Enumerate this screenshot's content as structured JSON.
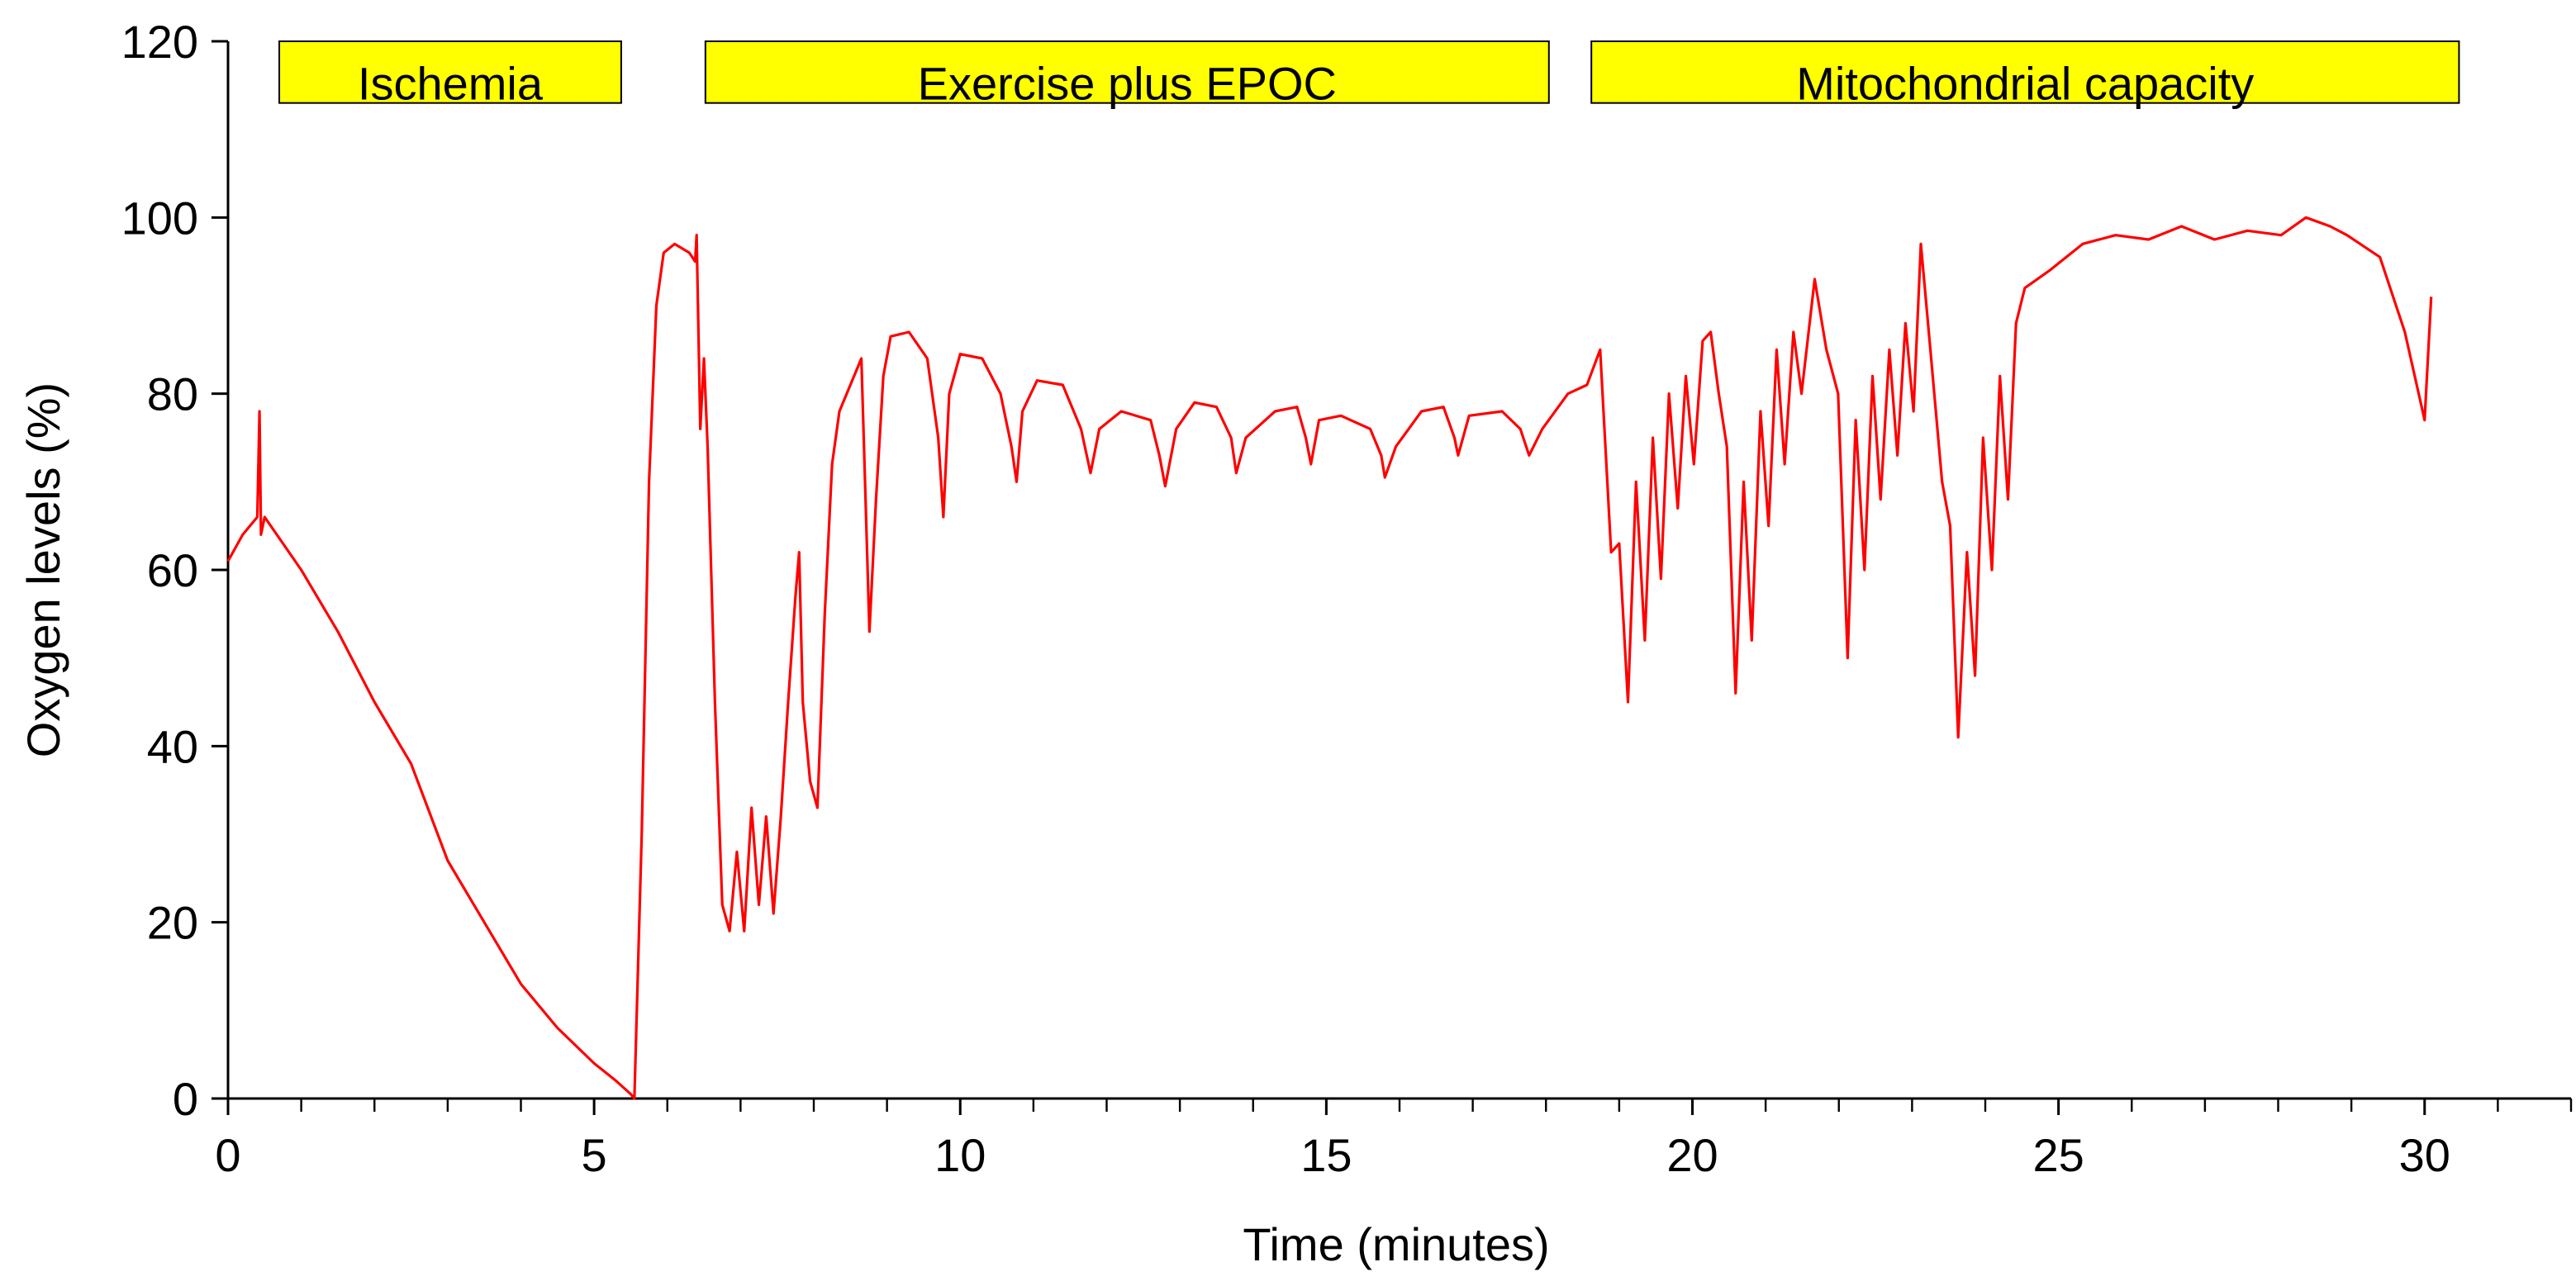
{
  "chart_data": {
    "type": "line",
    "xlabel": "Time (minutes)",
    "ylabel": "Oxygen levels (%)",
    "color": "#ff0000",
    "xlim": [
      0,
      32
    ],
    "ylim": [
      0,
      120
    ],
    "xticks": [
      0,
      5,
      10,
      15,
      20,
      25,
      30
    ],
    "yticks": [
      0,
      20,
      40,
      60,
      80,
      100,
      120
    ],
    "x_minor_ticks": [
      0,
      1,
      2,
      3,
      4,
      5,
      6,
      7,
      8,
      9,
      10,
      11,
      12,
      13,
      14,
      15,
      16,
      17,
      18,
      19,
      20,
      21,
      22,
      23,
      24,
      25,
      26,
      27,
      28,
      29,
      30,
      31,
      32
    ],
    "annotations": [
      {
        "text": "Ischemia",
        "x": [
          0.7,
          5.37
        ],
        "y": [
          113,
          120
        ],
        "color": "#ffff00"
      },
      {
        "text": "Exercise plus EPOC",
        "x": [
          6.52,
          18.04
        ],
        "y": [
          113,
          120
        ],
        "color": "#ffff00"
      },
      {
        "text": "Mitochondrial capacity",
        "x": [
          18.62,
          30.47
        ],
        "y": [
          113,
          120
        ],
        "color": "#ffff00"
      }
    ],
    "x": [
      0,
      0.2,
      0.4,
      0.43,
      0.45,
      0.5,
      1,
      1.5,
      2,
      2.5,
      3,
      3.5,
      4,
      4.5,
      5,
      5.3,
      5.5,
      5.55,
      5.65,
      5.75,
      5.85,
      5.95,
      6.1,
      6.3,
      6.38,
      6.4,
      6.45,
      6.5,
      6.55,
      6.65,
      6.75,
      6.85,
      6.95,
      7.05,
      7.15,
      7.25,
      7.35,
      7.45,
      7.55,
      7.65,
      7.75,
      7.8,
      7.85,
      7.95,
      8.05,
      8.15,
      8.25,
      8.35,
      8.5,
      8.65,
      8.7,
      8.76,
      8.85,
      8.95,
      9.05,
      9.3,
      9.55,
      9.7,
      9.77,
      9.85,
      10.0,
      10.3,
      10.55,
      10.7,
      10.77,
      10.85,
      11.05,
      11.4,
      11.65,
      11.78,
      11.9,
      12.2,
      12.6,
      12.72,
      12.8,
      12.95,
      13.2,
      13.5,
      13.7,
      13.77,
      13.9,
      14.3,
      14.6,
      14.72,
      14.79,
      14.9,
      15.2,
      15.6,
      15.75,
      15.8,
      15.95,
      16.3,
      16.6,
      16.75,
      16.8,
      16.95,
      17.4,
      17.65,
      17.77,
      17.95,
      18.3,
      18.56,
      18.74,
      18.89,
      19.0,
      19.12,
      19.23,
      19.35,
      19.46,
      19.57,
      19.68,
      19.8,
      19.91,
      20.02,
      20.14,
      20.25,
      20.36,
      20.47,
      20.59,
      20.7,
      20.81,
      20.93,
      21.04,
      21.15,
      21.26,
      21.38,
      21.49,
      21.67,
      21.83,
      21.99,
      22.12,
      22.23,
      22.35,
      22.46,
      22.57,
      22.69,
      22.8,
      22.91,
      23.02,
      23.12,
      23.25,
      23.41,
      23.52,
      23.63,
      23.75,
      23.86,
      23.97,
      24.09,
      24.2,
      24.31,
      24.42,
      24.54,
      24.88,
      25.33,
      25.78,
      26.23,
      26.68,
      27.13,
      27.58,
      28.04,
      28.38,
      28.71,
      28.94,
      29.39,
      29.73,
      30.0,
      30.09
    ],
    "values": [
      61,
      64,
      66,
      78,
      64,
      66,
      60,
      53,
      45,
      38,
      27,
      20,
      13,
      8,
      4,
      2,
      0.5,
      0,
      30,
      70,
      90,
      96,
      97,
      96,
      95,
      98,
      76,
      84,
      74,
      45,
      22,
      19,
      28,
      19,
      33,
      22,
      32,
      21,
      32,
      45,
      57,
      62,
      45,
      36,
      33,
      55,
      72,
      78,
      81,
      84,
      70,
      53,
      68,
      82,
      86.5,
      87,
      84,
      75,
      66,
      80,
      84.5,
      84,
      80,
      74,
      70,
      78,
      81.5,
      81,
      76,
      71,
      76,
      78,
      77,
      73,
      69.5,
      76,
      79,
      78.5,
      75,
      71,
      75,
      78,
      78.5,
      75,
      72,
      77,
      77.5,
      76,
      73,
      70.5,
      74,
      78,
      78.5,
      75,
      73,
      77.5,
      78,
      76,
      73,
      76,
      80,
      81,
      85,
      62,
      63,
      45,
      70,
      52,
      75,
      59,
      80,
      67,
      82,
      72,
      86,
      87,
      80,
      74,
      46,
      70,
      52,
      78,
      65,
      85,
      72,
      87,
      80,
      93,
      85,
      80,
      50,
      77,
      60,
      82,
      68,
      85,
      73,
      88,
      78,
      97,
      85,
      70,
      65,
      41,
      62,
      48,
      75,
      60,
      82,
      68,
      88,
      92,
      94,
      97,
      98,
      97.5,
      99,
      97.5,
      98.5,
      98,
      100,
      99,
      98,
      95.5,
      87,
      77,
      91
    ]
  }
}
